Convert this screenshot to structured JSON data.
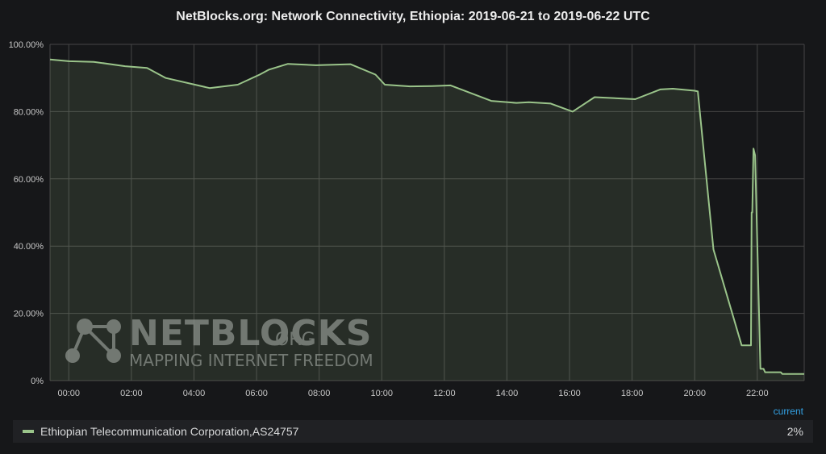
{
  "title": "NetBlocks.org: Network Connectivity, Ethiopia: 2019-06-21 to 2019-06-22 UTC",
  "colors": {
    "series": "#9ac48a",
    "background": "#161719",
    "legend_header": "#33a2e5"
  },
  "watermark": {
    "brand": "NETBLOCKS",
    "suffix": ".ORG",
    "tagline": "MAPPING INTERNET FREEDOM"
  },
  "legend": {
    "header": "current",
    "entries": [
      {
        "name": "Ethiopian Telecommunication Corporation,AS24757",
        "current": "2%"
      }
    ]
  },
  "chart_data": {
    "type": "area",
    "title": "NetBlocks.org: Network Connectivity, Ethiopia: 2019-06-21 to 2019-06-22 UTC",
    "xlabel": "",
    "ylabel": "",
    "xlim": [
      -0.6,
      23.5
    ],
    "ylim": [
      0,
      100
    ],
    "grid": true,
    "legend_position": "bottom",
    "x_ticks": [
      0,
      2,
      4,
      6,
      8,
      10,
      12,
      14,
      16,
      18,
      20,
      22
    ],
    "x_tick_labels": [
      "00:00",
      "02:00",
      "04:00",
      "06:00",
      "08:00",
      "10:00",
      "12:00",
      "14:00",
      "16:00",
      "18:00",
      "20:00",
      "22:00"
    ],
    "y_ticks": [
      0,
      20,
      40,
      60,
      80,
      100
    ],
    "y_tick_labels": [
      "0%",
      "20.00%",
      "40.00%",
      "60.00%",
      "80.00%",
      "100.00%"
    ],
    "series": [
      {
        "name": "Ethiopian Telecommunication Corporation,AS24757",
        "x": [
          -0.6,
          0.0,
          0.8,
          1.8,
          2.5,
          3.1,
          4.5,
          5.4,
          6.1,
          6.4,
          7.0,
          7.9,
          9.0,
          9.8,
          10.1,
          10.9,
          11.6,
          12.2,
          13.5,
          14.3,
          14.7,
          15.4,
          16.1,
          16.8,
          18.1,
          18.9,
          19.3,
          20.0,
          20.1,
          20.6,
          21.5,
          21.8,
          21.82,
          21.84,
          21.88,
          21.93,
          22.1,
          22.2,
          22.25,
          22.75,
          22.8,
          23.5
        ],
        "y": [
          95.5,
          95,
          94.8,
          93.5,
          93,
          90,
          87,
          88,
          91,
          92.5,
          94.2,
          93.8,
          94.1,
          91,
          88,
          87.5,
          87.6,
          87.8,
          83.2,
          82.6,
          82.8,
          82.4,
          80,
          84.3,
          83.7,
          86.6,
          86.8,
          86.2,
          86,
          39,
          10.5,
          10.5,
          50,
          50,
          69,
          67,
          3.5,
          3.5,
          2.5,
          2.5,
          2,
          2
        ]
      }
    ]
  }
}
